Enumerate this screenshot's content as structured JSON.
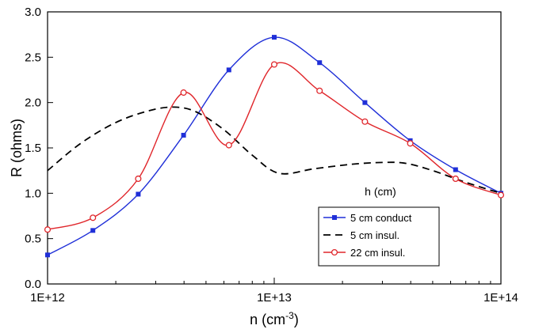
{
  "chart_data": {
    "type": "line",
    "xscale": "log",
    "xlim": [
      1000000000000.0,
      100000000000000.0
    ],
    "ylim": [
      0.0,
      3.0
    ],
    "xlabel_base": "n (cm",
    "xlabel_sup": "-3",
    "xlabel_end": ")",
    "ylabel": "R (ohms)",
    "x_ticks": [
      {
        "value": 1000000000000.0,
        "label": "1E+12"
      },
      {
        "value": 10000000000000.0,
        "label": "1E+13"
      },
      {
        "value": 100000000000000.0,
        "label": "1E+14"
      }
    ],
    "y_ticks": [
      {
        "value": 0.0,
        "label": "0.0"
      },
      {
        "value": 0.5,
        "label": "0.5"
      },
      {
        "value": 1.0,
        "label": "1.0"
      },
      {
        "value": 1.5,
        "label": "1.5"
      },
      {
        "value": 2.0,
        "label": "2.0"
      },
      {
        "value": 2.5,
        "label": "2.5"
      },
      {
        "value": 3.0,
        "label": "3.0"
      }
    ],
    "legend_title": "h (cm)",
    "legend_position": "lower-right",
    "series": [
      {
        "name": "5 cm conduct",
        "color": "#1f2fd8",
        "dash": "solid",
        "marker": "square-filled",
        "x": [
          1000000000000.0,
          1585000000000.0,
          2512000000000.0,
          3981000000000.0,
          6310000000000.0,
          10000000000000.0,
          15850000000000.0,
          25120000000000.0,
          39810000000000.0,
          63100000000000.0,
          100000000000000.0
        ],
        "y": [
          0.32,
          0.59,
          0.99,
          1.64,
          2.36,
          2.72,
          2.44,
          2.0,
          1.58,
          1.26,
          1.0
        ]
      },
      {
        "name": "5 cm insul.",
        "color": "#000000",
        "dash": "dashed",
        "marker": "none",
        "x": [
          1000000000000.0,
          1400000000000.0,
          2000000000000.0,
          2800000000000.0,
          3600000000000.0,
          4500000000000.0,
          6000000000000.0,
          8000000000000.0,
          10500000000000.0,
          15000000000000.0,
          22000000000000.0,
          30000000000000.0,
          38000000000000.0,
          50000000000000.0,
          70000000000000.0,
          100000000000000.0
        ],
        "y": [
          1.25,
          1.55,
          1.78,
          1.91,
          1.95,
          1.9,
          1.7,
          1.42,
          1.22,
          1.27,
          1.32,
          1.34,
          1.33,
          1.25,
          1.12,
          1.0
        ]
      },
      {
        "name": "22 cm insul.",
        "color": "#e0262b",
        "dash": "solid",
        "marker": "circle-open",
        "x": [
          1000000000000.0,
          1585000000000.0,
          2512000000000.0,
          3981000000000.0,
          6310000000000.0,
          10000000000000.0,
          15850000000000.0,
          25120000000000.0,
          39810000000000.0,
          63100000000000.0,
          100000000000000.0
        ],
        "y": [
          0.6,
          0.73,
          1.16,
          2.11,
          1.53,
          2.42,
          2.13,
          1.79,
          1.55,
          1.16,
          0.98
        ]
      }
    ]
  }
}
